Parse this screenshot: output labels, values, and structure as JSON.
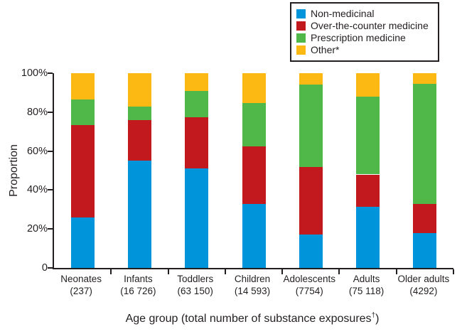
{
  "legend": {
    "position": "top-right",
    "items": [
      {
        "label": "Non-medicinal",
        "color": "#0095da",
        "swatch_icon": "square-swatch"
      },
      {
        "label": "Over-the-counter medicine",
        "color": "#c2191f",
        "swatch_icon": "square-swatch"
      },
      {
        "label": "Prescription medicine",
        "color": "#50b848",
        "swatch_icon": "square-swatch"
      },
      {
        "label": "Other*",
        "color": "#fcb813",
        "swatch_icon": "square-swatch"
      }
    ]
  },
  "chart_data": {
    "type": "bar",
    "stacked": true,
    "percent_stacked": true,
    "title": "",
    "ylabel": "Proportion",
    "xlabel": "Age group (total number of substance exposures†)",
    "xlabel_parts": {
      "main": "Age group (total number of substance exposures",
      "sup": "†",
      "end": ")"
    },
    "ylim": [
      0,
      100
    ],
    "grid": false,
    "y_ticks": [
      "0",
      "20%",
      "40%",
      "60%",
      "80%",
      "100%"
    ],
    "categories": [
      {
        "label": "Neonates",
        "count_label": "(237)"
      },
      {
        "label": "Infants",
        "count_label": "(16 726)"
      },
      {
        "label": "Toddlers",
        "count_label": "(63 150)"
      },
      {
        "label": "Children",
        "count_label": "(14 593)"
      },
      {
        "label": "Adolescents",
        "count_label": "(7754)"
      },
      {
        "label": "Adults",
        "count_label": "(75 118)"
      },
      {
        "label": "Older adults",
        "count_label": "(4292)"
      }
    ],
    "series": [
      {
        "name": "Non-medicinal",
        "color": "#0095da",
        "values": [
          26,
          55,
          51,
          33,
          17,
          31.5,
          18
        ]
      },
      {
        "name": "Over-the-counter medicine",
        "color": "#c2191f",
        "values": [
          47.5,
          21,
          26.5,
          29.5,
          35,
          16.5,
          15
        ]
      },
      {
        "name": "Prescription medicine",
        "color": "#50b848",
        "values": [
          13,
          7,
          13.5,
          22,
          42,
          40,
          61.5
        ]
      },
      {
        "name": "Other*",
        "color": "#fcb813",
        "values": [
          13.5,
          17,
          9,
          15.5,
          6,
          12,
          5.5
        ]
      }
    ],
    "axis_color": "#231f20"
  }
}
